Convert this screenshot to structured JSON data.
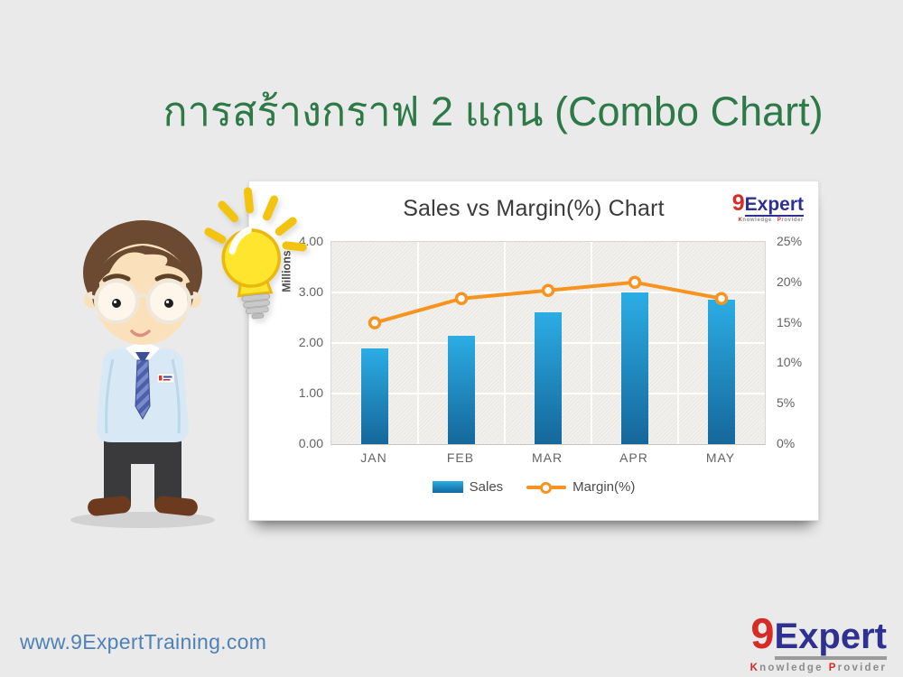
{
  "slide": {
    "title": "การสร้างกราฟ 2 แกน (Combo Chart)",
    "title_color": "#2D7A48",
    "background": "#EAEAEA",
    "footer_url": "www.9ExpertTraining.com"
  },
  "brand": {
    "prefix": "9",
    "name": "Expert",
    "tagline_k": "K",
    "tagline_nowledge": "nowledge",
    "tagline_p": "P",
    "tagline_rovider": "rovider",
    "red": "#D62B27",
    "blue": "#2E3192",
    "gray": "#8C8C8C"
  },
  "chart_data": {
    "type": "combo-bar-line",
    "title": "Sales vs Margin(%) Chart",
    "categories": [
      "JAN",
      "FEB",
      "MAR",
      "APR",
      "MAY"
    ],
    "series": [
      {
        "name": "Sales",
        "type": "bar",
        "axis": "left",
        "values": [
          1.9,
          2.15,
          2.6,
          3.0,
          2.85
        ],
        "color_top": "#2BADE4",
        "color_bottom": "#15679B"
      },
      {
        "name": "Margin(%)",
        "type": "line",
        "axis": "right",
        "values": [
          15,
          18,
          19,
          20,
          18
        ],
        "color": "#F79420",
        "marker": "circle-white-fill"
      }
    ],
    "left_axis": {
      "label": "Millions",
      "min": 0,
      "max": 4,
      "ticks_top_to_bottom": [
        "4.00",
        "3.00",
        "2.00",
        "1.00",
        "0.00"
      ]
    },
    "right_axis": {
      "min": 0,
      "max": 25,
      "ticks_top_to_bottom": [
        "25%",
        "20%",
        "15%",
        "10%",
        "5%",
        "0%"
      ]
    },
    "legend": [
      {
        "label": "Sales",
        "swatch": "bar"
      },
      {
        "label": "Margin(%)",
        "swatch": "line"
      }
    ],
    "grid": true,
    "plot_background": "#F2F0ED"
  }
}
